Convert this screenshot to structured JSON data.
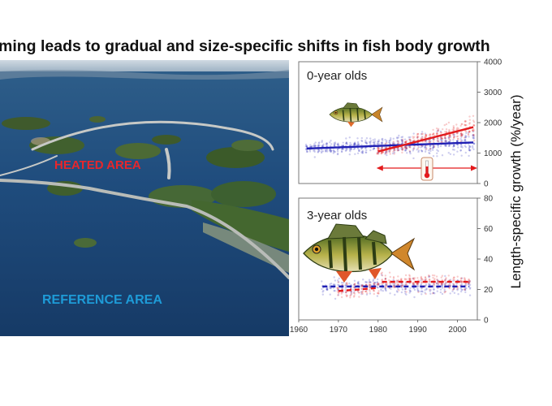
{
  "title": "ming leads to gradual and size-specific shifts in fish body growth",
  "photo": {
    "heated_label": "HEATED AREA",
    "reference_label": "REFERENCE AREA",
    "heated_color": "#e8262b",
    "reference_color": "#1e9bd7"
  },
  "colors": {
    "heated": "#e31a1c",
    "reference": "#1f1fb4"
  },
  "y_axis_label": "Length-specific growth (%/year)",
  "chart_data": [
    {
      "type": "scatter",
      "panel_label": "0-year olds",
      "ylim": [
        0,
        4000
      ],
      "yticks": [
        0,
        1000,
        2000,
        3000,
        4000
      ],
      "xlim": [
        1960,
        2005
      ],
      "heated_period": [
        1980,
        2004
      ],
      "series": [
        {
          "color": "#1f1fb4",
          "trend": {
            "x": [
              1962,
              2004
            ],
            "y": [
              1150,
              1350
            ]
          }
        },
        {
          "color": "#e31a1c",
          "trend": {
            "x": [
              1980,
              2004
            ],
            "y": [
              1050,
              1850
            ]
          }
        }
      ]
    },
    {
      "type": "scatter",
      "panel_label": "3-year olds",
      "ylim": [
        0,
        80
      ],
      "yticks": [
        0,
        20,
        40,
        60,
        80
      ],
      "xlim": [
        1960,
        2005
      ],
      "xticks": [
        1960,
        1970,
        1980,
        1990,
        2000
      ],
      "series": [
        {
          "color": "#1f1fb4",
          "trend": {
            "x": [
              1966,
              2003
            ],
            "y": [
              22,
              22
            ]
          }
        },
        {
          "color": "#e31a1c",
          "trend": {
            "x": [
              1970,
              1980
            ],
            "y": [
              19,
              21
            ]
          }
        },
        {
          "color": "#e31a1c",
          "trend": {
            "x": [
              1981,
              2003
            ],
            "y": [
              25,
              25
            ]
          }
        }
      ]
    }
  ]
}
